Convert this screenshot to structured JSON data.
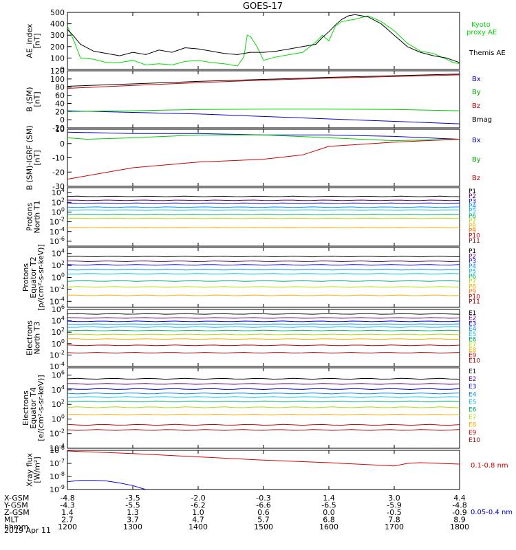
{
  "title": "GOES-17",
  "date_label": "2019 Apr 11",
  "ephemeris": {
    "rows": [
      {
        "label": "X-GSM",
        "values": [
          "-4.8",
          "-3.5",
          "-2.0",
          "-0.3",
          "1.4",
          "3.0",
          "4.4"
        ]
      },
      {
        "label": "Y-GSM",
        "values": [
          "-4.3",
          "-5.5",
          "-6.2",
          "-6.6",
          "-6.5",
          "-5.9",
          "-4.8"
        ]
      },
      {
        "label": "Z-GSM",
        "values": [
          "1.4",
          "1.3",
          "1.0",
          "0.6",
          "0.0",
          "-0.5",
          "-0.9"
        ]
      },
      {
        "label": "MLT",
        "values": [
          "2.7",
          "3.7",
          "4.7",
          "5.7",
          "6.8",
          "7.8",
          "8.9"
        ]
      },
      {
        "label": "hhmm",
        "values": [
          "1200",
          "1300",
          "1400",
          "1500",
          "1600",
          "1700",
          "1800"
        ]
      }
    ]
  },
  "chart_data": [
    {
      "id": "ae",
      "type": "line",
      "ylabel": [
        "AE_index",
        "[nT]"
      ],
      "ylim": [
        0,
        500
      ],
      "yticks": [
        "0",
        "100",
        "200",
        "300",
        "400",
        "500"
      ],
      "xlim": [
        1200,
        1800
      ],
      "series": [
        {
          "name": "Kyoto proxy AE",
          "color": "#00dd00",
          "x": [
            1200,
            1210,
            1220,
            1240,
            1260,
            1280,
            1300,
            1320,
            1340,
            1360,
            1380,
            1400,
            1420,
            1440,
            1460,
            1470,
            1475,
            1480,
            1490,
            1500,
            1520,
            1540,
            1560,
            1580,
            1590,
            1600,
            1610,
            1620,
            1630,
            1640,
            1660,
            1680,
            1700,
            1720,
            1740,
            1760,
            1780,
            1790,
            1800
          ],
          "y": [
            380,
            250,
            100,
            90,
            60,
            60,
            80,
            40,
            50,
            40,
            70,
            80,
            60,
            50,
            30,
            110,
            300,
            290,
            200,
            80,
            110,
            130,
            150,
            240,
            300,
            250,
            380,
            420,
            430,
            440,
            470,
            420,
            340,
            230,
            160,
            140,
            90,
            60,
            50
          ]
        },
        {
          "name": "Themis AE",
          "color": "#000000",
          "x": [
            1200,
            1210,
            1220,
            1240,
            1260,
            1280,
            1300,
            1320,
            1340,
            1360,
            1380,
            1400,
            1420,
            1440,
            1460,
            1470,
            1480,
            1490,
            1500,
            1520,
            1540,
            1560,
            1580,
            1590,
            1600,
            1610,
            1620,
            1630,
            1640,
            1660,
            1680,
            1700,
            1720,
            1740,
            1760,
            1780,
            1790,
            1800
          ],
          "y": [
            350,
            290,
            220,
            160,
            140,
            120,
            150,
            130,
            170,
            150,
            190,
            180,
            160,
            140,
            130,
            140,
            150,
            150,
            150,
            160,
            180,
            200,
            220,
            280,
            330,
            390,
            440,
            470,
            480,
            460,
            400,
            300,
            200,
            150,
            120,
            100,
            80,
            60
          ]
        }
      ]
    },
    {
      "id": "b_sm",
      "type": "line",
      "ylabel": [
        "B (SM)",
        "[nT]"
      ],
      "ylim": [
        -20,
        120
      ],
      "yticks": [
        "-20",
        "0",
        "20",
        "40",
        "60",
        "80",
        "100",
        "120"
      ],
      "xlim": [
        1200,
        1800
      ],
      "series": [
        {
          "name": "Bx",
          "color": "#0000cc",
          "x": [
            1200,
            1300,
            1400,
            1500,
            1600,
            1700,
            1800
          ],
          "y": [
            22,
            18,
            14,
            8,
            2,
            -4,
            -10
          ]
        },
        {
          "name": "By",
          "color": "#00cc00",
          "x": [
            1200,
            1300,
            1400,
            1500,
            1600,
            1700,
            1800
          ],
          "y": [
            20,
            22,
            25,
            26,
            26,
            25,
            22
          ]
        },
        {
          "name": "Bz",
          "color": "#cc0000",
          "x": [
            1200,
            1300,
            1400,
            1500,
            1600,
            1700,
            1800
          ],
          "y": [
            77,
            84,
            91,
            97,
            102,
            106,
            110
          ]
        },
        {
          "name": "Bmag",
          "color": "#000000",
          "x": [
            1200,
            1300,
            1400,
            1500,
            1600,
            1700,
            1800
          ],
          "y": [
            82,
            88,
            94,
            99,
            104,
            108,
            112
          ]
        }
      ]
    },
    {
      "id": "b_igrf",
      "type": "line",
      "ylabel": [
        "B (SM)-IGRF (SM)",
        "[nT]"
      ],
      "ylim": [
        -30,
        10
      ],
      "yticks": [
        "-30",
        "-20",
        "-10",
        "0",
        "10"
      ],
      "xlim": [
        1200,
        1800
      ],
      "series": [
        {
          "name": "Bx",
          "color": "#0000cc",
          "x": [
            1200,
            1300,
            1400,
            1500,
            1600,
            1700,
            1800
          ],
          "y": [
            8,
            7,
            7,
            6,
            6,
            5,
            3
          ]
        },
        {
          "name": "By",
          "color": "#00cc00",
          "x": [
            1200,
            1230,
            1300,
            1400,
            1500,
            1600,
            1700,
            1800
          ],
          "y": [
            4,
            3,
            4,
            6,
            6,
            4,
            2,
            3
          ]
        },
        {
          "name": "Bz",
          "color": "#cc0000",
          "x": [
            1200,
            1300,
            1400,
            1450,
            1500,
            1560,
            1600,
            1700,
            1800
          ],
          "y": [
            -25,
            -17,
            -13,
            -12,
            -11,
            -8,
            -2,
            1,
            3
          ]
        }
      ]
    },
    {
      "id": "p_north",
      "type": "line",
      "log": true,
      "ylabel": [
        "Protons",
        "North T1"
      ],
      "yexp": [
        4,
        2,
        0,
        -2,
        -4,
        -6
      ],
      "ylim_exp": [
        -7,
        5
      ],
      "xlim": [
        1200,
        1800
      ],
      "legend": [
        "P1",
        "P2",
        "P3",
        "P4",
        "P5",
        "P6",
        "P7",
        "P8",
        "P9",
        "P10",
        "P11"
      ],
      "series": [
        {
          "name": "P1",
          "color": "#000000",
          "level": 3.2
        },
        {
          "name": "P2",
          "color": "#5a007a",
          "level": 2.4
        },
        {
          "name": "P3",
          "color": "#0000cc",
          "level": 1.8
        },
        {
          "name": "P4",
          "color": "#0088ff",
          "level": 1.0
        },
        {
          "name": "P5",
          "color": "#00bbee",
          "level": 0.4
        },
        {
          "name": "P6",
          "color": "#00aa66",
          "level": -0.5
        },
        {
          "name": "P7",
          "color": "#aadd00",
          "level": -1.3
        },
        {
          "name": "P8",
          "color": "#ffaa00",
          "level": -3.2
        }
      ]
    },
    {
      "id": "p_equator",
      "type": "line",
      "log": true,
      "ylabel": [
        "Protons",
        "Equator T2",
        "[p/(cm²-s-sr-keV)]"
      ],
      "yexp": [
        4,
        2,
        0,
        -2,
        -4
      ],
      "ylim_exp": [
        -5,
        5
      ],
      "xlim": [
        1200,
        1800
      ],
      "legend": [
        "P1",
        "P2",
        "P3",
        "P4",
        "P5",
        "P6",
        "P7",
        "P8",
        "P9",
        "P10",
        "P11"
      ],
      "series": [
        {
          "name": "P1",
          "color": "#000000",
          "level": 3.5
        },
        {
          "name": "P2",
          "color": "#5a007a",
          "level": 2.7
        },
        {
          "name": "P3",
          "color": "#0000cc",
          "level": 2.1
        },
        {
          "name": "P4",
          "color": "#0088ff",
          "level": 1.3
        },
        {
          "name": "P5",
          "color": "#00bbee",
          "level": 0.6
        },
        {
          "name": "P6",
          "color": "#00aa66",
          "level": -0.6
        },
        {
          "name": "P7",
          "color": "#aadd00",
          "level": -1.6
        },
        {
          "name": "P8",
          "color": "#ffaa00",
          "level": -3.0
        }
      ]
    },
    {
      "id": "e_north",
      "type": "line",
      "log": true,
      "ylabel": [
        "Electrons",
        "North T3"
      ],
      "yexp": [
        6,
        4,
        2,
        0,
        -2,
        -4
      ],
      "ylim_exp": [
        -4,
        6
      ],
      "xlim": [
        1200,
        1800
      ],
      "legend": [
        "E1",
        "E2",
        "E3",
        "E4",
        "E5",
        "E6",
        "E7",
        "E8",
        "E9",
        "E10"
      ],
      "series": [
        {
          "name": "E1",
          "color": "#000000",
          "level": 5.2
        },
        {
          "name": "E2",
          "color": "#5a007a",
          "level": 4.5
        },
        {
          "name": "E3",
          "color": "#0000cc",
          "level": 3.9
        },
        {
          "name": "E4",
          "color": "#0088ff",
          "level": 3.4
        },
        {
          "name": "E5",
          "color": "#00bbee",
          "level": 2.9
        },
        {
          "name": "E6",
          "color": "#00aa66",
          "level": 2.3
        },
        {
          "name": "E7",
          "color": "#aadd00",
          "level": 1.6
        },
        {
          "name": "E8",
          "color": "#ffaa00",
          "level": 0.8
        },
        {
          "name": "E9",
          "color": "#cc0000",
          "level": -0.3
        },
        {
          "name": "E10",
          "color": "#990000",
          "level": -1.6
        }
      ]
    },
    {
      "id": "e_equator",
      "type": "line",
      "log": true,
      "ylabel": [
        "Electrons",
        "Equator T4",
        "[e/(cm²-s-sr-keV)]"
      ],
      "yexp": [
        6,
        4,
        2,
        0,
        -2,
        -4
      ],
      "ylim_exp": [
        -4,
        7
      ],
      "xlim": [
        1200,
        1800
      ],
      "legend": [
        "E1",
        "E2",
        "E3",
        "E4",
        "E5",
        "E6",
        "E7",
        "E8",
        "E9",
        "E10"
      ],
      "series": [
        {
          "name": "E1",
          "color": "#000000",
          "level": 5.5
        },
        {
          "name": "E2",
          "color": "#5a007a",
          "level": 4.8
        },
        {
          "name": "E3",
          "color": "#0000cc",
          "level": 4.1
        },
        {
          "name": "E4",
          "color": "#0088ff",
          "level": 3.5
        },
        {
          "name": "E5",
          "color": "#00bbee",
          "level": 3.0
        },
        {
          "name": "E6",
          "color": "#00aa66",
          "level": 2.4
        },
        {
          "name": "E7",
          "color": "#aadd00",
          "level": 1.6
        },
        {
          "name": "E8",
          "color": "#ffaa00",
          "level": 0.6
        },
        {
          "name": "E9",
          "color": "#cc0000",
          "level": -0.8
        },
        {
          "name": "E10",
          "color": "#990000",
          "level": -1.5
        }
      ]
    },
    {
      "id": "xray",
      "type": "line",
      "log": true,
      "ylabel": [
        "Xray flux",
        "[W/m²]"
      ],
      "yexp": [
        -6,
        -7,
        -8,
        -9
      ],
      "ylim_exp": [
        -9,
        -6
      ],
      "xlim": [
        1200,
        1800
      ],
      "series": [
        {
          "name": "0.1-0.8 nm",
          "color": "#dd0000",
          "x": [
            1200,
            1300,
            1400,
            1500,
            1600,
            1700,
            1720,
            1740,
            1800
          ],
          "y": [
            -6.05,
            -6.25,
            -6.5,
            -6.75,
            -6.95,
            -7.2,
            -7.0,
            -6.95,
            -7.05
          ]
        },
        {
          "name": "0.05-0.4 nm",
          "color": "#0000dd",
          "x": [
            1200,
            1220,
            1240,
            1260,
            1280,
            1300,
            1320
          ],
          "y": [
            -8.4,
            -8.3,
            -8.3,
            -8.35,
            -8.5,
            -8.7,
            -9.0
          ]
        }
      ]
    }
  ]
}
